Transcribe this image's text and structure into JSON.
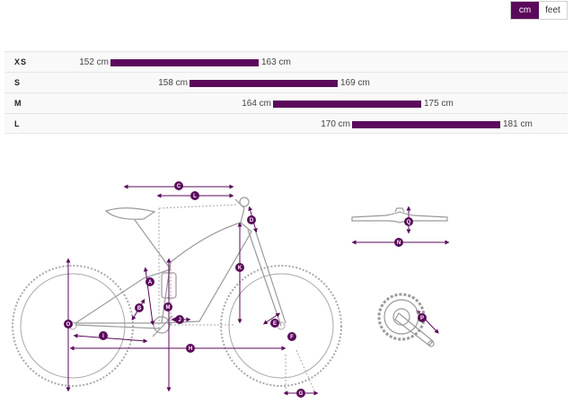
{
  "unit_toggle": {
    "cm_label": "cm",
    "feet_label": "feet",
    "selected": "cm"
  },
  "sizes": [
    {
      "label": "XS",
      "min": "152 cm",
      "max": "163 cm",
      "min_value": 152,
      "max_value": 163
    },
    {
      "label": "S",
      "min": "158 cm",
      "max": "169 cm",
      "min_value": 158,
      "max_value": 169
    },
    {
      "label": "M",
      "min": "164 cm",
      "max": "175 cm",
      "min_value": 164,
      "max_value": 175
    },
    {
      "label": "L",
      "min": "170 cm",
      "max": "181 cm",
      "min_value": 170,
      "max_value": 181
    }
  ],
  "geometry_markers": [
    "A",
    "B",
    "C",
    "D",
    "E",
    "F",
    "G",
    "H",
    "I",
    "J",
    "K",
    "L",
    "M",
    "N",
    "O",
    "P",
    "Q"
  ],
  "colors": {
    "accent": "#5b0a5b",
    "line": "#b0b0b0"
  },
  "icons": [
    "bike-geometry-diagram",
    "handlebar-icon",
    "crankset-icon"
  ]
}
